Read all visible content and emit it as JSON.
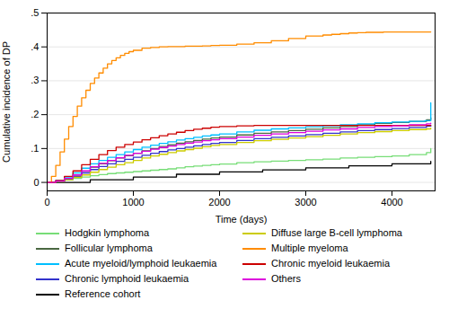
{
  "chart_data": {
    "type": "line",
    "xlabel": "Time (days)",
    "ylabel": "Cumulative incidence of DP",
    "xlim": [
      0,
      4500
    ],
    "ylim": [
      -0.025,
      0.5
    ],
    "xticks": [
      0,
      1000,
      2000,
      3000,
      4000
    ],
    "yticks": [
      0,
      {
        "value": 0.1,
        "label": ".1"
      },
      {
        "value": 0.2,
        "label": ".2"
      },
      {
        "value": 0.3,
        "label": ".3"
      },
      {
        "value": 0.4,
        "label": ".4"
      },
      {
        "value": 0.5,
        "label": ".5"
      }
    ],
    "grid": "y",
    "legend": "bottom",
    "series": [
      {
        "name": "Hodgkin lymphoma",
        "color": "#77dd77",
        "x": [
          0,
          100,
          200,
          300,
          400,
          500,
          600,
          700,
          800,
          900,
          1000,
          1100,
          1200,
          1300,
          1400,
          1500,
          1600,
          1700,
          1800,
          1900,
          2000,
          2200,
          2400,
          2600,
          2800,
          3000,
          3200,
          3400,
          3600,
          3800,
          4000,
          4200,
          4400,
          4450
        ],
        "values": [
          0,
          0.004,
          0.008,
          0.012,
          0.016,
          0.02,
          0.023,
          0.026,
          0.028,
          0.03,
          0.032,
          0.034,
          0.036,
          0.038,
          0.04,
          0.043,
          0.046,
          0.048,
          0.05,
          0.052,
          0.054,
          0.058,
          0.061,
          0.063,
          0.065,
          0.067,
          0.069,
          0.072,
          0.074,
          0.076,
          0.078,
          0.082,
          0.088,
          0.1
        ]
      },
      {
        "name": "Follicular lymphoma",
        "color": "#4a6741",
        "x": [
          0,
          100,
          200,
          300,
          400,
          500,
          600,
          700,
          800,
          900,
          1000,
          1100,
          1200,
          1300,
          1400,
          1500,
          1600,
          1700,
          1800,
          1900,
          2000,
          2200,
          2400,
          2600,
          2800,
          3000,
          3200,
          3400,
          3600,
          3800,
          4000,
          4200,
          4400,
          4450
        ],
        "values": [
          0,
          0.005,
          0.012,
          0.022,
          0.033,
          0.045,
          0.055,
          0.064,
          0.072,
          0.079,
          0.086,
          0.093,
          0.1,
          0.106,
          0.111,
          0.116,
          0.12,
          0.124,
          0.128,
          0.131,
          0.134,
          0.14,
          0.145,
          0.149,
          0.153,
          0.157,
          0.161,
          0.165,
          0.17,
          0.174,
          0.177,
          0.18,
          0.185,
          0.191
        ]
      },
      {
        "name": "Acute myeloid/lymphoid leukaemia",
        "color": "#00bfff",
        "x": [
          0,
          100,
          200,
          300,
          400,
          500,
          600,
          700,
          800,
          900,
          1000,
          1100,
          1200,
          1300,
          1400,
          1500,
          1600,
          1700,
          1800,
          1900,
          2000,
          2200,
          2400,
          2600,
          2800,
          3000,
          3200,
          3400,
          3600,
          3800,
          4000,
          4200,
          4380,
          4450
        ],
        "values": [
          0,
          0.006,
          0.016,
          0.028,
          0.042,
          0.055,
          0.065,
          0.074,
          0.082,
          0.09,
          0.097,
          0.104,
          0.11,
          0.115,
          0.12,
          0.125,
          0.129,
          0.133,
          0.137,
          0.14,
          0.143,
          0.149,
          0.154,
          0.158,
          0.161,
          0.164,
          0.167,
          0.17,
          0.173,
          0.176,
          0.178,
          0.18,
          0.182,
          0.235
        ]
      },
      {
        "name": "Chronic lymphoid leukaemia",
        "color": "#3333cc",
        "x": [
          0,
          100,
          200,
          300,
          400,
          500,
          600,
          700,
          800,
          900,
          1000,
          1100,
          1200,
          1300,
          1400,
          1500,
          1600,
          1700,
          1800,
          1900,
          2000,
          2200,
          2400,
          2600,
          2800,
          3000,
          3200,
          3400,
          3600,
          3800,
          4000,
          4200,
          4400,
          4450
        ],
        "values": [
          0,
          0.003,
          0.009,
          0.018,
          0.028,
          0.038,
          0.047,
          0.055,
          0.062,
          0.068,
          0.074,
          0.08,
          0.086,
          0.091,
          0.096,
          0.1,
          0.104,
          0.108,
          0.112,
          0.115,
          0.118,
          0.124,
          0.129,
          0.133,
          0.137,
          0.141,
          0.145,
          0.149,
          0.153,
          0.156,
          0.159,
          0.162,
          0.166,
          0.168
        ]
      },
      {
        "name": "Reference cohort",
        "color": "#000000",
        "x": [
          0,
          500,
          1000,
          1500,
          2000,
          2500,
          3000,
          3500,
          4000,
          4450
        ],
        "values": [
          0,
          0.008,
          0.016,
          0.024,
          0.031,
          0.037,
          0.043,
          0.049,
          0.055,
          0.062
        ]
      },
      {
        "name": "Diffuse large B-cell lymphoma",
        "color": "#cccc00",
        "x": [
          0,
          100,
          200,
          300,
          400,
          500,
          600,
          700,
          800,
          900,
          1000,
          1100,
          1200,
          1300,
          1400,
          1500,
          1600,
          1700,
          1800,
          1900,
          2000,
          2200,
          2400,
          2600,
          2800,
          3000,
          3200,
          3400,
          3600,
          3800,
          4000,
          4200,
          4400,
          4450
        ],
        "values": [
          0,
          0.003,
          0.008,
          0.015,
          0.022,
          0.03,
          0.038,
          0.045,
          0.052,
          0.058,
          0.065,
          0.072,
          0.078,
          0.083,
          0.088,
          0.093,
          0.097,
          0.101,
          0.105,
          0.109,
          0.112,
          0.118,
          0.123,
          0.127,
          0.131,
          0.135,
          0.139,
          0.143,
          0.147,
          0.15,
          0.153,
          0.156,
          0.158,
          0.16
        ]
      },
      {
        "name": "Multiple myeloma",
        "color": "#ff8c00",
        "x": [
          0,
          50,
          100,
          150,
          200,
          250,
          300,
          350,
          400,
          450,
          500,
          550,
          600,
          650,
          700,
          750,
          800,
          850,
          900,
          950,
          1000,
          1100,
          1200,
          1300,
          1400,
          1500,
          1600,
          1700,
          1800,
          1900,
          2000,
          2200,
          2400,
          2600,
          2800,
          3000,
          3200,
          3300,
          3400,
          3500,
          3600,
          3700,
          3800,
          3900,
          4000,
          4100,
          4200,
          4300,
          4400,
          4450
        ],
        "values": [
          0,
          0.018,
          0.05,
          0.09,
          0.128,
          0.165,
          0.195,
          0.225,
          0.25,
          0.272,
          0.292,
          0.308,
          0.323,
          0.337,
          0.35,
          0.36,
          0.368,
          0.375,
          0.381,
          0.386,
          0.39,
          0.396,
          0.398,
          0.4,
          0.401,
          0.401,
          0.402,
          0.402,
          0.403,
          0.404,
          0.405,
          0.408,
          0.412,
          0.418,
          0.425,
          0.432,
          0.435,
          0.437,
          0.439,
          0.441,
          0.442,
          0.443,
          0.443,
          0.444,
          0.444,
          0.444,
          0.444,
          0.444,
          0.444,
          0.444
        ]
      },
      {
        "name": "Chronic myeloid leukaemia",
        "color": "#cc0000",
        "x": [
          0,
          100,
          200,
          300,
          400,
          500,
          600,
          700,
          800,
          900,
          1000,
          1100,
          1200,
          1300,
          1400,
          1500,
          1600,
          1700,
          1800,
          1900,
          2000,
          2200,
          2400,
          2600,
          2800,
          3000,
          3500,
          4000,
          4450
        ],
        "values": [
          0,
          0.006,
          0.018,
          0.034,
          0.052,
          0.068,
          0.082,
          0.094,
          0.104,
          0.112,
          0.119,
          0.126,
          0.132,
          0.138,
          0.143,
          0.148,
          0.153,
          0.157,
          0.16,
          0.163,
          0.165,
          0.167,
          0.168,
          0.168,
          0.168,
          0.168,
          0.168,
          0.168,
          0.168
        ]
      },
      {
        "name": "Others",
        "color": "#dd00dd",
        "x": [
          0,
          100,
          200,
          300,
          400,
          500,
          600,
          700,
          800,
          900,
          1000,
          1100,
          1200,
          1300,
          1400,
          1500,
          1600,
          1700,
          1800,
          1900,
          2000,
          2200,
          2400,
          2600,
          2800,
          3000,
          3200,
          3400,
          3600,
          3800,
          4000,
          4200,
          4400,
          4450
        ],
        "values": [
          0,
          0.004,
          0.012,
          0.022,
          0.034,
          0.046,
          0.056,
          0.065,
          0.073,
          0.08,
          0.086,
          0.092,
          0.098,
          0.103,
          0.107,
          0.112,
          0.116,
          0.119,
          0.123,
          0.126,
          0.129,
          0.134,
          0.139,
          0.143,
          0.147,
          0.151,
          0.155,
          0.158,
          0.162,
          0.165,
          0.167,
          0.17,
          0.173,
          0.175
        ]
      }
    ]
  }
}
